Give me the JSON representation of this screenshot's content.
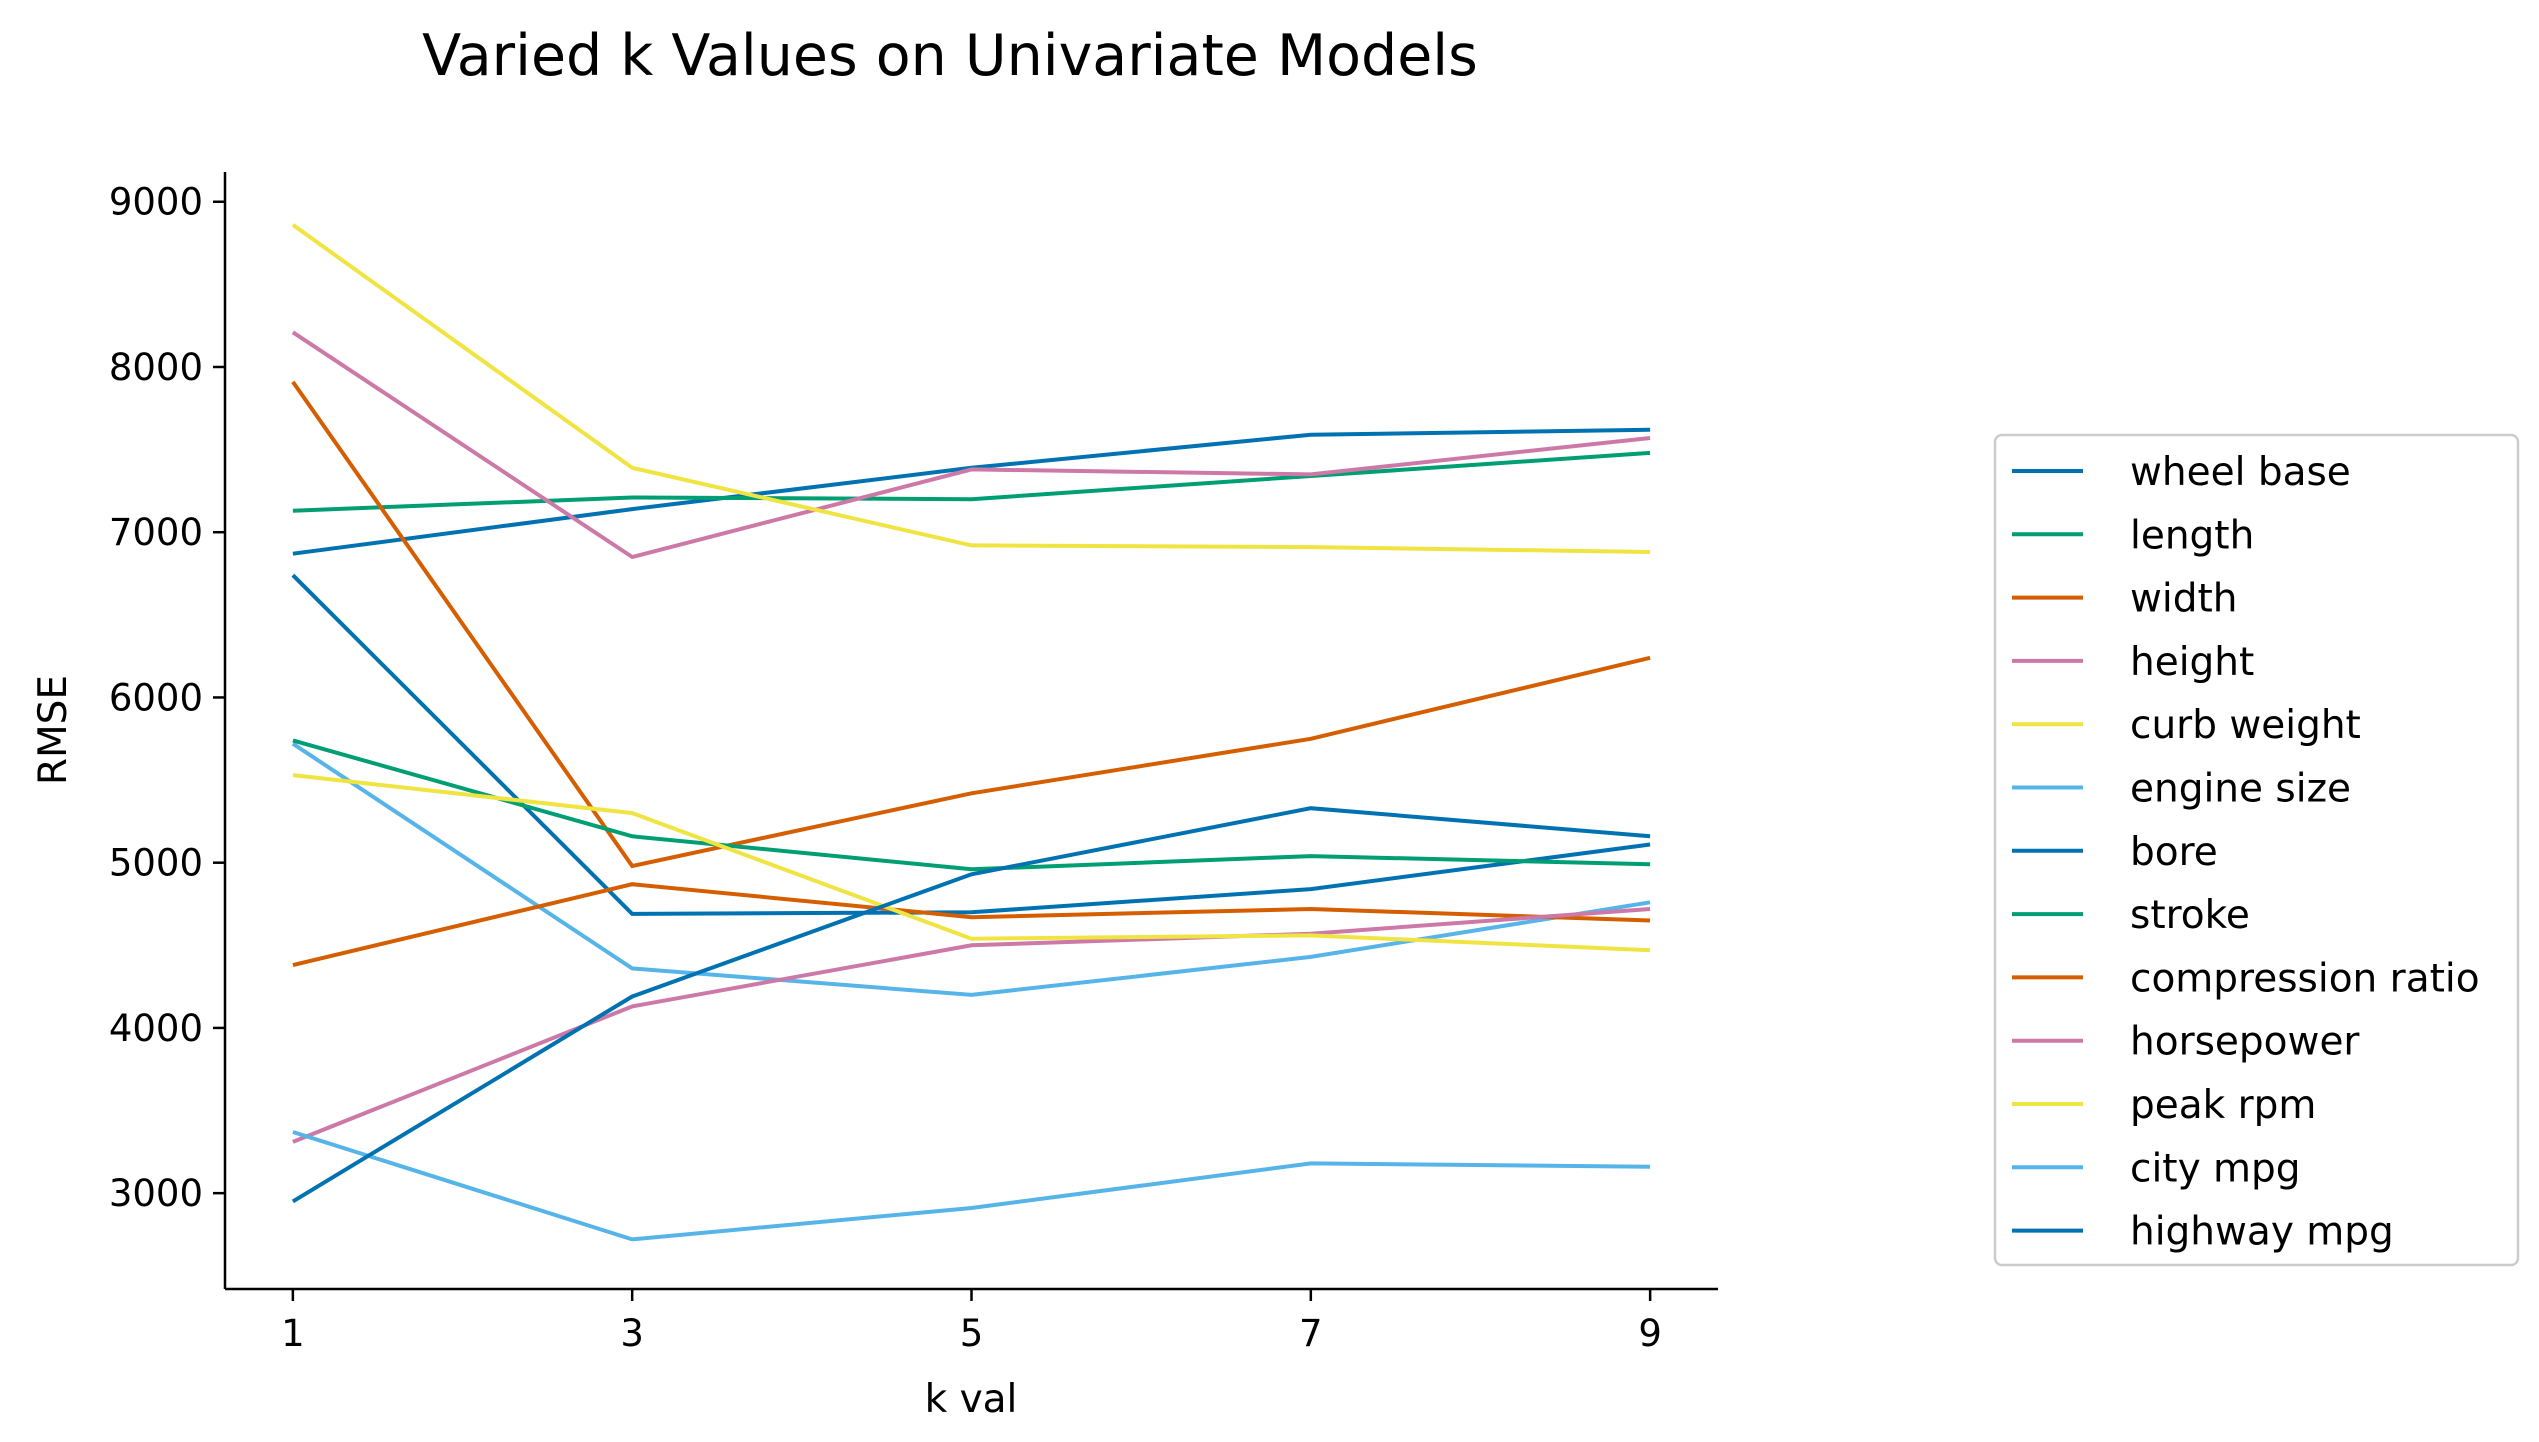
{
  "chart_data": {
    "type": "line",
    "title": "Varied k Values on Univariate Models",
    "xlabel": "k val",
    "ylabel": "RMSE",
    "x": [
      1,
      3,
      5,
      7,
      9
    ],
    "xticks": [
      "1",
      "3",
      "5",
      "7",
      "9"
    ],
    "yticks": [
      "3000",
      "4000",
      "5000",
      "6000",
      "7000",
      "8000",
      "9000"
    ],
    "xlim": [
      0.6,
      9.4
    ],
    "ylim": [
      2420,
      9180
    ],
    "grid": false,
    "legend_position": "right",
    "series": [
      {
        "name": "wheel base",
        "color": "#0072b2",
        "values": [
          6870,
          7140,
          7390,
          7590,
          7620
        ]
      },
      {
        "name": "length",
        "color": "#009e73",
        "values": [
          7130,
          7210,
          7200,
          7340,
          7480
        ]
      },
      {
        "name": "width",
        "color": "#d55e00",
        "values": [
          7910,
          4980,
          5420,
          5750,
          6240
        ]
      },
      {
        "name": "height",
        "color": "#cc79a7",
        "values": [
          8210,
          6850,
          7380,
          7350,
          7570
        ]
      },
      {
        "name": "curb weight",
        "color": "#f0e442",
        "values": [
          8860,
          7390,
          6920,
          6910,
          6880
        ]
      },
      {
        "name": "engine size",
        "color": "#56b4e9",
        "values": [
          5720,
          4360,
          4200,
          4430,
          4760
        ]
      },
      {
        "name": "bore",
        "color": "#0072b2",
        "values": [
          6740,
          4690,
          4700,
          4840,
          5110
        ]
      },
      {
        "name": "stroke",
        "color": "#009e73",
        "values": [
          5740,
          5160,
          4960,
          5040,
          4990
        ]
      },
      {
        "name": "compression ratio",
        "color": "#d55e00",
        "values": [
          4380,
          4870,
          4670,
          4720,
          4650
        ]
      },
      {
        "name": "horsepower",
        "color": "#cc79a7",
        "values": [
          3310,
          4130,
          4500,
          4570,
          4720
        ]
      },
      {
        "name": "peak rpm",
        "color": "#f0e442",
        "values": [
          5530,
          5300,
          4540,
          4560,
          4470
        ]
      },
      {
        "name": "city mpg",
        "color": "#56b4e9",
        "values": [
          3370,
          2720,
          2910,
          3180,
          3160
        ]
      },
      {
        "name": "highway mpg",
        "color": "#0072b2",
        "values": [
          2950,
          4190,
          4930,
          5330,
          5160
        ]
      }
    ]
  }
}
